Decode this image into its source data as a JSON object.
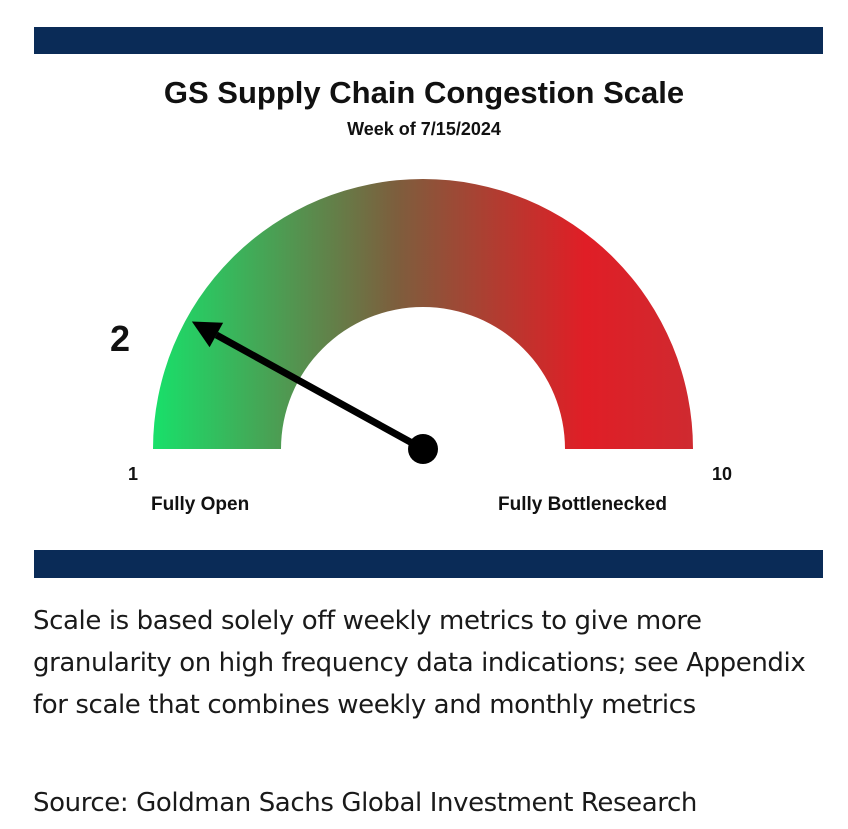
{
  "header": {
    "title": "GS Supply Chain Congestion Scale",
    "subtitle": "Week of 7/15/2024"
  },
  "chart_data": {
    "type": "gauge",
    "title": "GS Supply Chain Congestion Scale",
    "subtitle": "Week of 7/15/2024",
    "min": 1,
    "max": 10,
    "value": 2,
    "value_label": "2",
    "min_label": "1",
    "max_label": "10",
    "min_caption": "Fully Open",
    "max_caption": "Fully Bottlenecked",
    "colors": {
      "start": "#18e06a",
      "middle": "#7d5e3d",
      "end": "#e01e26",
      "needle": "#000000",
      "bars": "#0a2b57"
    }
  },
  "footer": {
    "note": "Scale is based solely off weekly metrics to give more granularity on high frequency data indications; see Appendix for scale that combines weekly and monthly metrics",
    "source": "Source: Goldman Sachs Global Investment Research"
  }
}
